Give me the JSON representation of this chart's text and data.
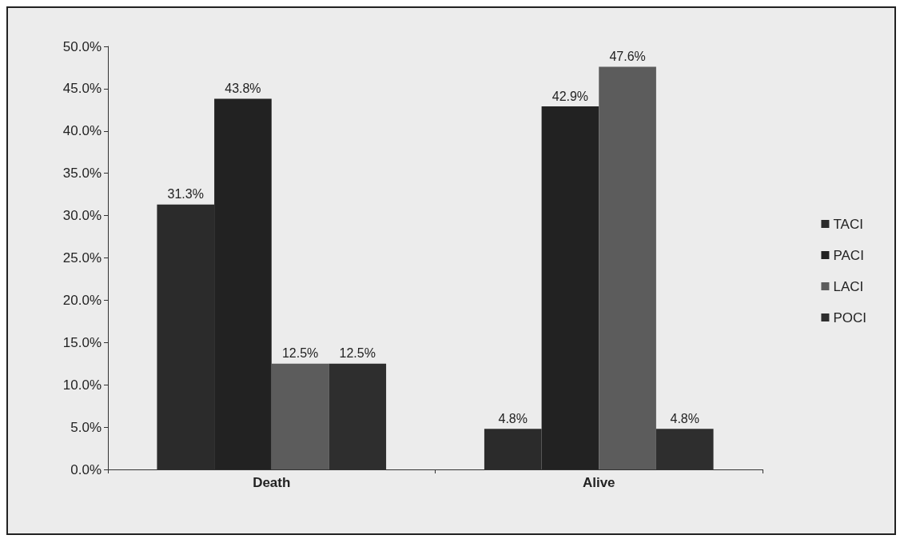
{
  "chart_data": {
    "type": "bar",
    "categories": [
      "Death",
      "Alive"
    ],
    "series": [
      {
        "name": "TACI",
        "color": "#2b2b2b",
        "values": [
          31.3,
          4.8
        ],
        "value_labels": [
          "31.3%",
          "4.8%"
        ]
      },
      {
        "name": "PACI",
        "color": "#222222",
        "values": [
          43.8,
          42.9
        ],
        "value_labels": [
          "43.8%",
          "42.9%"
        ]
      },
      {
        "name": "LACI",
        "color": "#5c5c5c",
        "values": [
          12.5,
          47.6
        ],
        "value_labels": [
          "12.5%",
          "47.6%"
        ]
      },
      {
        "name": "POCI",
        "color": "#2e2e2e",
        "values": [
          12.5,
          4.8
        ],
        "value_labels": [
          "12.5%",
          "4.8%"
        ]
      }
    ],
    "ylim": [
      0,
      50
    ],
    "yticks": [
      {
        "value": 0,
        "label": "0.0%"
      },
      {
        "value": 5,
        "label": "5.0%"
      },
      {
        "value": 10,
        "label": "10.0%"
      },
      {
        "value": 15,
        "label": "15.0%"
      },
      {
        "value": 20,
        "label": "20.0%"
      },
      {
        "value": 25,
        "label": "25.0%"
      },
      {
        "value": 30,
        "label": "30.0%"
      },
      {
        "value": 35,
        "label": "35.0%"
      },
      {
        "value": 40,
        "label": "40.0%"
      },
      {
        "value": 45,
        "label": "45.0%"
      },
      {
        "value": 50,
        "label": "50.0%"
      }
    ],
    "grid": false,
    "legend": "right"
  }
}
